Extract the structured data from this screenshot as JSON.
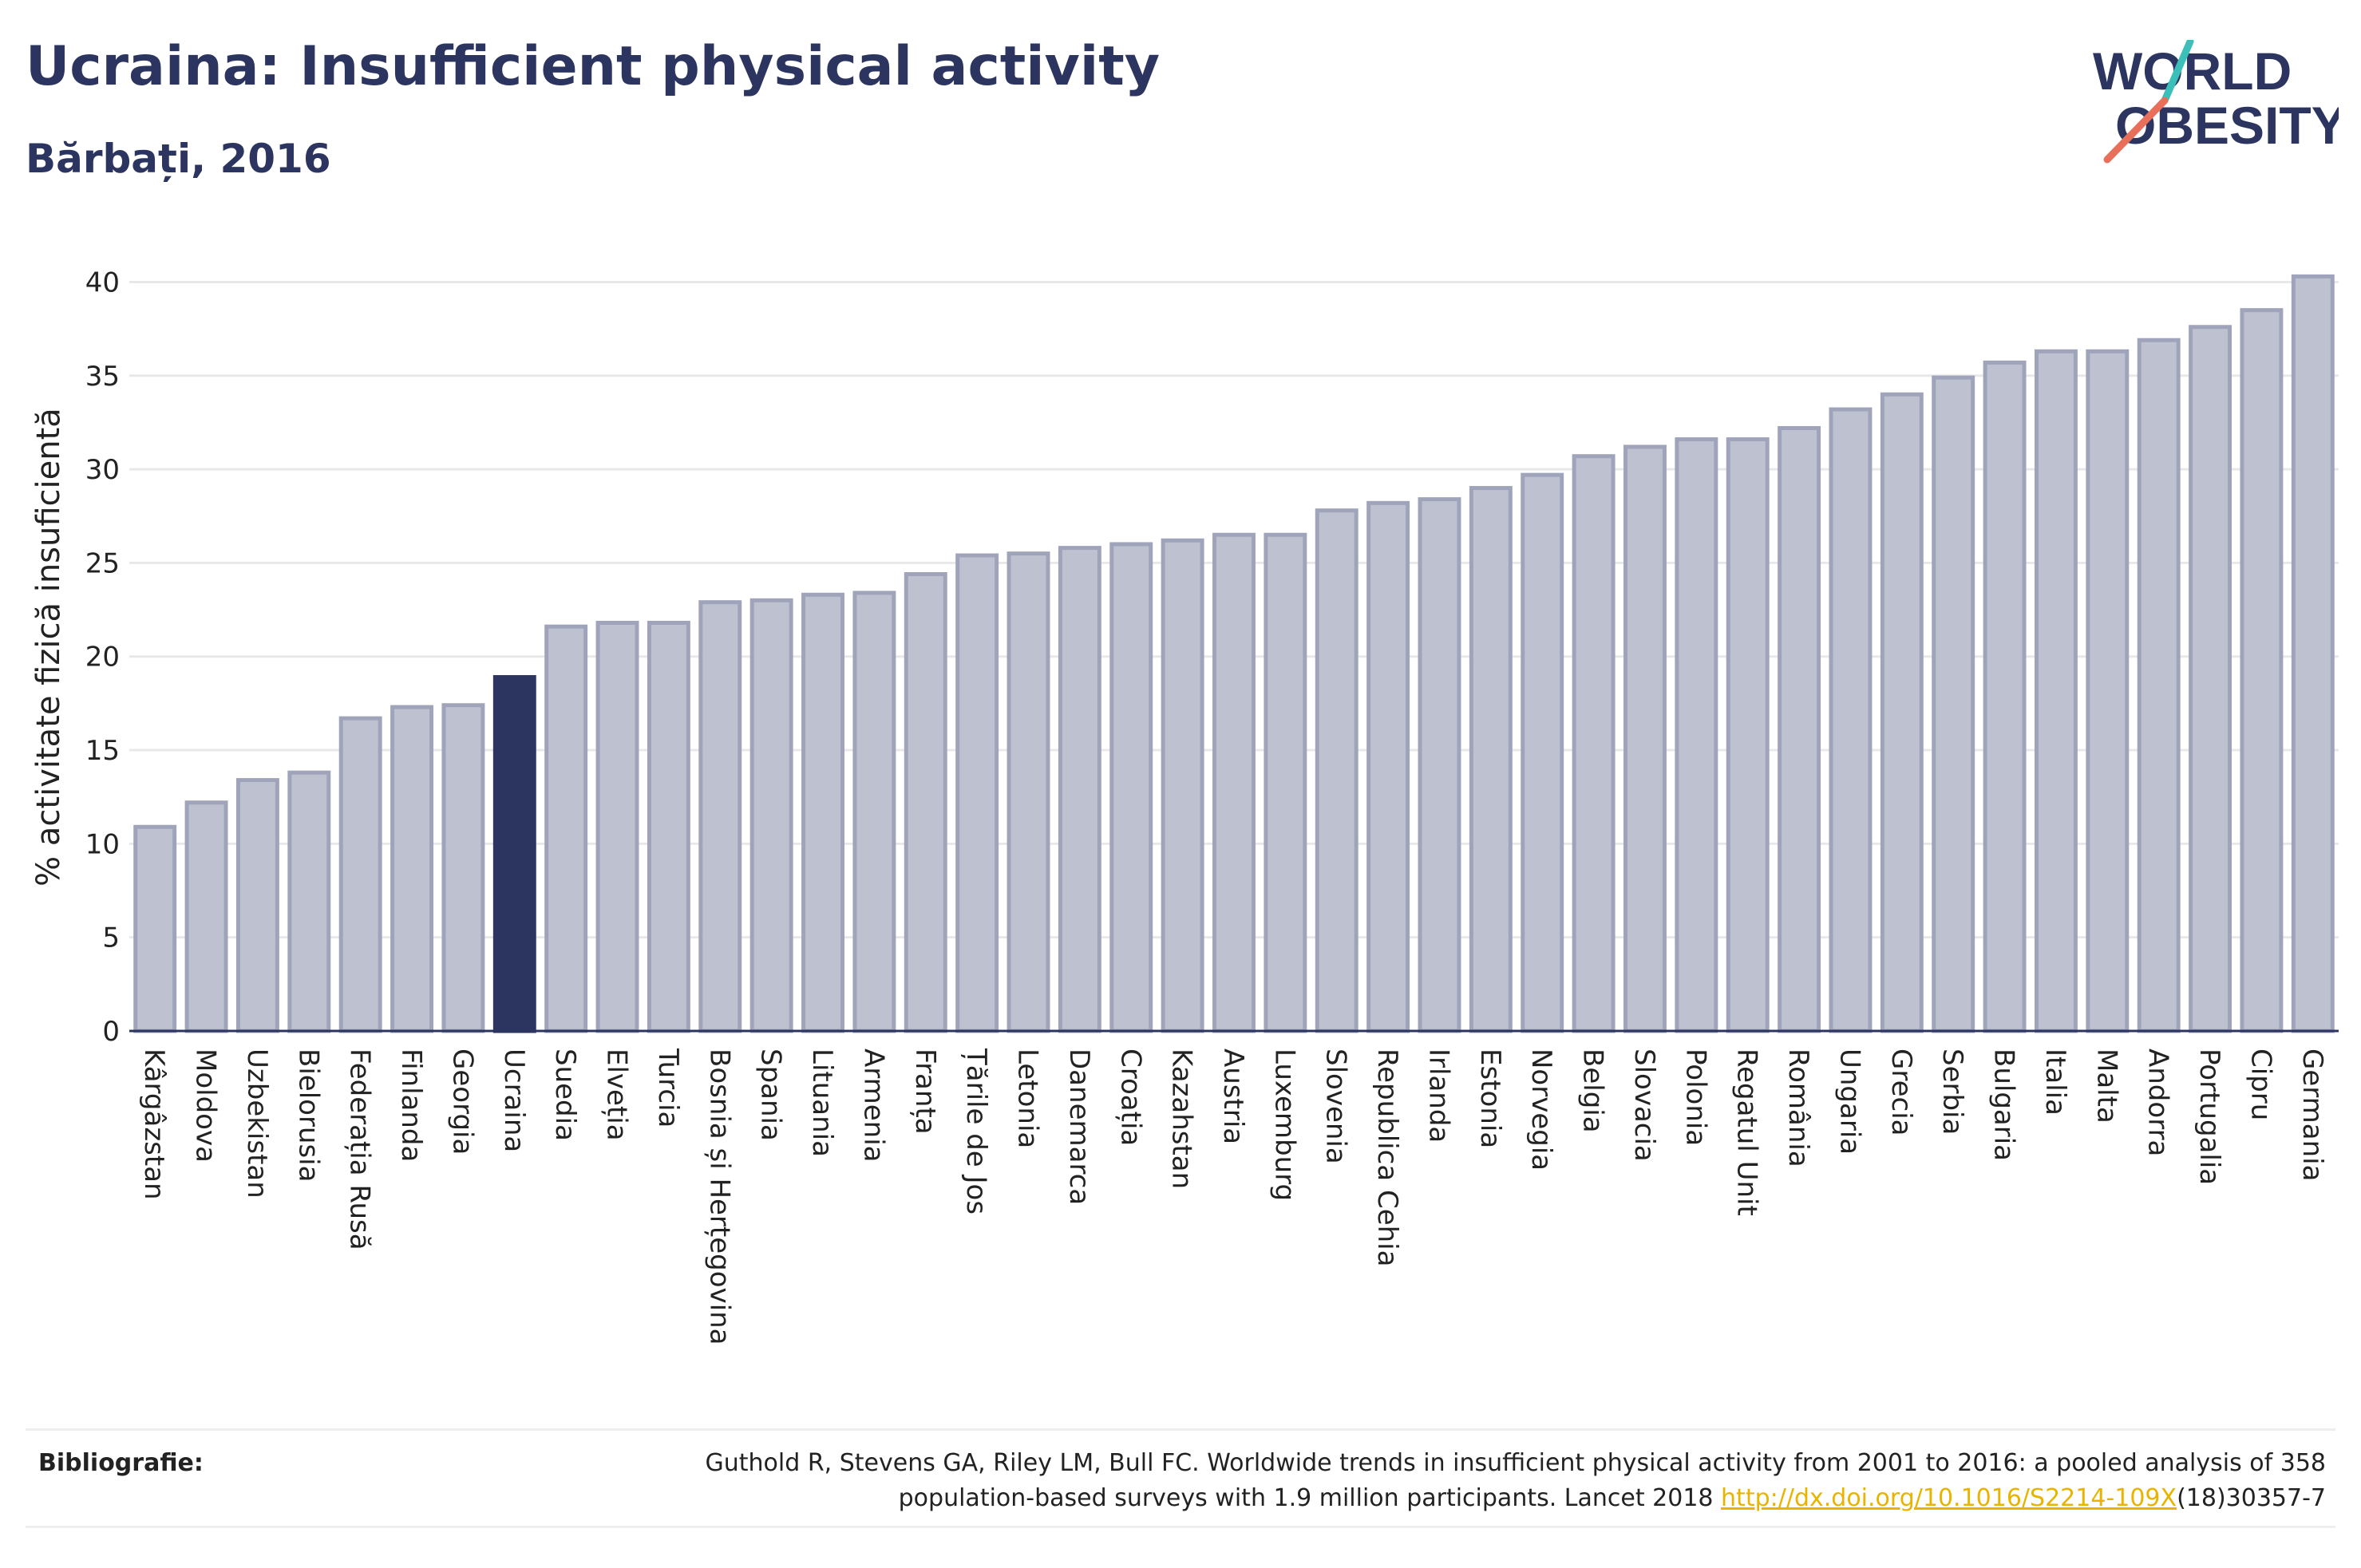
{
  "header": {
    "title": "Ucraina: Insufficient physical activity",
    "subtitle": "Bărbați, 2016"
  },
  "logo": {
    "line1": "WORLD",
    "line2": "OBESITY",
    "text_color": "#2c3560",
    "slash_colors": [
      "#3bbfb9",
      "#e8705a"
    ]
  },
  "chart_data": {
    "type": "bar",
    "ylabel": "% activitate fizică insuficientă",
    "xlabel": "",
    "ylim": [
      0,
      41
    ],
    "yticks": [
      0,
      5,
      10,
      15,
      20,
      25,
      30,
      35,
      40
    ],
    "grid": true,
    "highlight": "Ucraina",
    "colors": {
      "bar_fill": "#bec2d0",
      "bar_stroke": "#9fa4bb",
      "highlight": "#2c3560",
      "grid": "#e8e8e8",
      "axis": "#2c3560"
    },
    "categories": [
      "Kârgâzstan",
      "Moldova",
      "Uzbekistan",
      "Bielorusia",
      "Federația Rusă",
      "Finlanda",
      "Georgia",
      "Ucraina",
      "Suedia",
      "Elveția",
      "Turcia",
      "Bosnia și Herțegovina",
      "Spania",
      "Lituania",
      "Armenia",
      "Franța",
      "Țările de Jos",
      "Letonia",
      "Danemarca",
      "Croația",
      "Kazahstan",
      "Austria",
      "Luxemburg",
      "Slovenia",
      "Republica Cehia",
      "Irlanda",
      "Estonia",
      "Norvegia",
      "Belgia",
      "Slovacia",
      "Polonia",
      "Regatul Unit",
      "România",
      "Ungaria",
      "Grecia",
      "Serbia",
      "Bulgaria",
      "Italia",
      "Malta",
      "Andorra",
      "Portugalia",
      "Cipru",
      "Germania"
    ],
    "values": [
      10.9,
      12.2,
      13.4,
      13.8,
      16.7,
      17.3,
      17.4,
      18.9,
      21.6,
      21.8,
      21.8,
      22.9,
      23.0,
      23.3,
      23.4,
      24.4,
      25.4,
      25.5,
      25.8,
      26.0,
      26.2,
      26.5,
      26.5,
      27.8,
      28.2,
      28.4,
      29.0,
      29.7,
      30.7,
      31.2,
      31.6,
      31.6,
      32.2,
      33.2,
      34.0,
      34.9,
      35.7,
      36.3,
      36.3,
      36.9,
      37.6,
      38.5,
      40.3
    ]
  },
  "bibliography": {
    "label": "Bibliografie:",
    "text_line1": "Guthold R, Stevens GA, Riley LM, Bull FC. Worldwide trends in insufficient physical activity from 2001 to 2016: a pooled analysis of 358",
    "text_line2_prefix": "population-based surveys with 1.9 million participants. Lancet 2018 ",
    "link": "http://dx.doi.org/10.1016/S2214-109X",
    "text_line2_suffix": "(18)30357-7"
  }
}
